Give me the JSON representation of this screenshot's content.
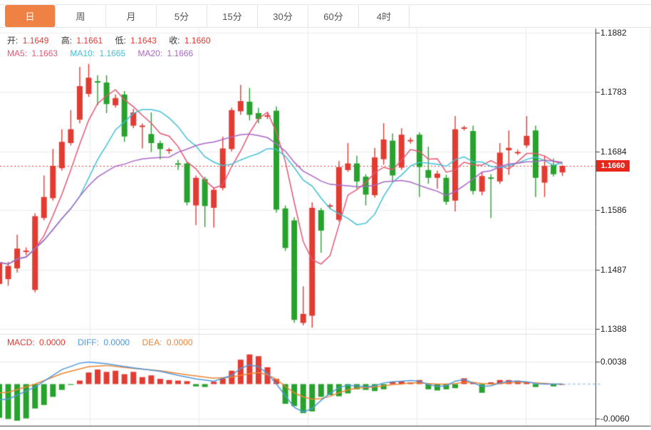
{
  "tabs": {
    "items": [
      {
        "label": "日",
        "active": true
      },
      {
        "label": "周",
        "active": false
      },
      {
        "label": "月",
        "active": false
      },
      {
        "label": "5分",
        "active": false
      },
      {
        "label": "15分",
        "active": false
      },
      {
        "label": "30分",
        "active": false
      },
      {
        "label": "60分",
        "active": false
      },
      {
        "label": "4时",
        "active": false
      }
    ]
  },
  "quote_bar": {
    "open_label": "开:",
    "open": "1.1649",
    "high_label": "高:",
    "high": "1.1661",
    "low_label": "低:",
    "low": "1.1643",
    "close_label": "收:",
    "close": "1.1660"
  },
  "ma_bar": {
    "ma5_label": "MA5:",
    "ma5": "1.1663",
    "ma10_label": "MA10:",
    "ma10": "1.1665",
    "ma20_label": "MA20:",
    "ma20": "1.1666"
  },
  "macd_bar": {
    "macd_label": "MACD:",
    "macd": "0.0000",
    "diff_label": "DIFF:",
    "diff": "0.0000",
    "dea_label": "DEA:",
    "dea": "0.0000"
  },
  "colors": {
    "up": "#e23b32",
    "down": "#27a22d",
    "ma5": "#e65775",
    "ma10": "#41c0d5",
    "ma20": "#a966c6",
    "diff": "#4e97dd",
    "dea": "#ef8532",
    "diff_dash": "#a9cfe8",
    "grid": "#ececec",
    "grid_strong": "#e0e0e0",
    "axis": "#3c3c3c",
    "accent_tab": "#ef8144",
    "badge_bg": "#e8271c",
    "last_price_line": "#e8392e"
  },
  "chart_data": {
    "type": "candlestick+macd",
    "legend_position": "top-left overlay",
    "grid": true,
    "panes": [
      {
        "name": "price",
        "ylim": [
          1.1383,
          1.1889
        ],
        "yticks": [
          {
            "label": "1.1882",
            "value": 1.1882
          },
          {
            "label": "1.1783",
            "value": 1.1783
          },
          {
            "label": "1.1684",
            "value": 1.1684
          },
          {
            "label": "1.1586",
            "value": 1.1586
          },
          {
            "label": "1.1487",
            "value": 1.1487
          },
          {
            "label": "1.1388",
            "value": 1.1388
          }
        ],
        "last_price": 1.166,
        "last_price_label": "1.1660",
        "ma_periods": [
          5,
          10,
          20
        ],
        "candles": [
          [
            1.1463,
            1.15,
            1.1458,
            1.1499
          ],
          [
            1.1471,
            1.15,
            1.146,
            1.1493
          ],
          [
            1.1489,
            1.1545,
            1.1482,
            1.1522
          ],
          [
            1.1517,
            1.1524,
            1.1511,
            1.1518
          ],
          [
            1.1453,
            1.1581,
            1.1449,
            1.1576
          ],
          [
            1.1573,
            1.1644,
            1.1569,
            1.1608
          ],
          [
            1.1606,
            1.1688,
            1.1602,
            1.166
          ],
          [
            1.1656,
            1.1721,
            1.1652,
            1.17
          ],
          [
            1.1698,
            1.1753,
            1.1694,
            1.1721
          ],
          [
            1.1737,
            1.1825,
            1.1731,
            1.1793
          ],
          [
            1.178,
            1.183,
            1.1775,
            1.1807
          ],
          [
            1.1801,
            1.1811,
            1.1761,
            1.1799
          ],
          [
            1.1799,
            1.1811,
            1.1748,
            1.1763
          ],
          [
            1.1761,
            1.1779,
            1.1757,
            1.1773
          ],
          [
            1.1779,
            1.1785,
            1.17,
            1.1709
          ],
          [
            1.1727,
            1.1755,
            1.1723,
            1.1749
          ],
          [
            1.1725,
            1.1731,
            1.1689,
            1.1727
          ],
          [
            1.1713,
            1.1749,
            1.1683,
            1.1698
          ],
          [
            1.1698,
            1.1702,
            1.1671,
            1.1688
          ],
          [
            1.1686,
            1.169,
            1.168,
            1.1686
          ],
          [
            1.1664,
            1.167,
            1.1653,
            1.1662
          ],
          [
            1.1664,
            1.1667,
            1.1594,
            1.1599
          ],
          [
            1.1594,
            1.1644,
            1.1561,
            1.164
          ],
          [
            1.1638,
            1.1642,
            1.1558,
            1.1593
          ],
          [
            1.159,
            1.1624,
            1.1557,
            1.162
          ],
          [
            1.1623,
            1.1709,
            1.1619,
            1.1689
          ],
          [
            1.1688,
            1.1757,
            1.1684,
            1.1753
          ],
          [
            1.1751,
            1.1795,
            1.1745,
            1.1768
          ],
          [
            1.1767,
            1.179,
            1.1736,
            1.1745
          ],
          [
            1.1748,
            1.1757,
            1.1731,
            1.1738
          ],
          [
            1.1743,
            1.1748,
            1.1738,
            1.1743
          ],
          [
            1.1752,
            1.1759,
            1.1582,
            1.1587
          ],
          [
            1.1589,
            1.1594,
            1.1518,
            1.1523
          ],
          [
            1.1569,
            1.1574,
            1.1398,
            1.1403
          ],
          [
            1.1398,
            1.1459,
            1.1394,
            1.1413
          ],
          [
            1.141,
            1.1599,
            1.139,
            1.159
          ],
          [
            1.1586,
            1.159,
            1.1515,
            1.1552
          ],
          [
            1.1593,
            1.1597,
            1.1588,
            1.1593
          ],
          [
            1.157,
            1.1668,
            1.1567,
            1.1658
          ],
          [
            1.1653,
            1.1698,
            1.165,
            1.1664
          ],
          [
            1.1664,
            1.1677,
            1.1622,
            1.1634
          ],
          [
            1.1642,
            1.1646,
            1.1594,
            1.1612
          ],
          [
            1.1611,
            1.169,
            1.1607,
            1.1674
          ],
          [
            1.1671,
            1.1731,
            1.1662,
            1.1704
          ],
          [
            1.1702,
            1.1714,
            1.1634,
            1.1644
          ],
          [
            1.1657,
            1.1723,
            1.1653,
            1.1712
          ],
          [
            1.1702,
            1.1707,
            1.1697,
            1.1702
          ],
          [
            1.1712,
            1.1716,
            1.1608,
            1.1658
          ],
          [
            1.1653,
            1.1692,
            1.163,
            1.164
          ],
          [
            1.164,
            1.1652,
            1.1622,
            1.1647
          ],
          [
            1.164,
            1.1645,
            1.1595,
            1.16
          ],
          [
            1.1602,
            1.1743,
            1.1584,
            1.1721
          ],
          [
            1.1723,
            1.1727,
            1.1719,
            1.1723
          ],
          [
            1.1718,
            1.1727,
            1.1612,
            1.1618
          ],
          [
            1.1617,
            1.165,
            1.1611,
            1.1643
          ],
          [
            1.164,
            1.1646,
            1.1573,
            1.1639
          ],
          [
            1.1634,
            1.1698,
            1.163,
            1.1682
          ],
          [
            1.1686,
            1.1719,
            1.1645,
            1.169
          ],
          [
            1.1682,
            1.1687,
            1.1678,
            1.1682
          ],
          [
            1.1694,
            1.1743,
            1.169,
            1.171
          ],
          [
            1.1719,
            1.1727,
            1.1608,
            1.164
          ],
          [
            1.1632,
            1.1677,
            1.1608,
            1.166
          ],
          [
            1.1662,
            1.1672,
            1.1642,
            1.1646
          ],
          [
            1.1649,
            1.1661,
            1.1643,
            1.166
          ]
        ]
      },
      {
        "name": "macd",
        "ylim": [
          -0.0075,
          0.0085
        ],
        "yticks": [
          {
            "label": "0.0038",
            "value": 0.0038
          },
          {
            "label": "-0.0060",
            "value": -0.006
          }
        ],
        "histogram": [
          -0.0058,
          -0.006,
          -0.0063,
          -0.0059,
          -0.0042,
          -0.0036,
          -0.0022,
          -0.001,
          -0.0001,
          0.0006,
          0.002,
          0.0025,
          0.0021,
          0.0023,
          0.0017,
          0.0021,
          0.0012,
          0.0015,
          0.0009,
          0.0007,
          0.0006,
          0.0005,
          -0.0004,
          -0.0005,
          0.0004,
          0.001,
          0.0023,
          0.0042,
          0.0051,
          0.0048,
          0.0029,
          0.0009,
          -0.0034,
          -0.0038,
          -0.005,
          -0.0047,
          -0.0022,
          -0.0019,
          -0.0021,
          -0.0016,
          -0.0009,
          -0.001,
          -0.0012,
          -0.0009,
          0.0004,
          0.0005,
          0.0003,
          0.0007,
          -0.0009,
          -0.0011,
          -0.0009,
          -0.0007,
          0.001,
          0.0003,
          -0.0015,
          0.0003,
          0.0007,
          0.0007,
          0.0006,
          0.0004,
          -0.0005,
          0.0002,
          -0.0004,
          0.0
        ],
        "diff_points": [
          [
            0,
            -0.0027
          ],
          [
            1,
            -0.0026
          ],
          [
            4,
            -0.0005
          ],
          [
            7,
            0.0025
          ],
          [
            9,
            0.0036
          ],
          [
            10,
            0.0038
          ],
          [
            12,
            0.0035
          ],
          [
            15,
            0.0028
          ],
          [
            18,
            0.0022
          ],
          [
            20,
            0.0015
          ],
          [
            22,
            0.0009
          ],
          [
            24,
            0.0005
          ],
          [
            26,
            0.0015
          ],
          [
            27,
            0.0027
          ],
          [
            28,
            0.0033
          ],
          [
            29,
            0.003
          ],
          [
            30,
            0.0018
          ],
          [
            31,
            0.0
          ],
          [
            32,
            -0.002
          ],
          [
            33,
            -0.004
          ],
          [
            34,
            -0.0048
          ],
          [
            35,
            -0.0042
          ],
          [
            36,
            -0.0028
          ],
          [
            37,
            -0.0016
          ],
          [
            38,
            -0.0006
          ],
          [
            39,
            -0.0002
          ],
          [
            40,
            -0.0003
          ],
          [
            41,
            -0.0005
          ],
          [
            42,
            -0.0003
          ],
          [
            43,
            0.0002
          ],
          [
            44,
            0.0004
          ],
          [
            45,
            0.0005
          ],
          [
            46,
            0.0006
          ],
          [
            47,
            0.0005
          ],
          [
            48,
            -0.0001
          ],
          [
            49,
            -0.0004
          ],
          [
            50,
            -0.0003
          ],
          [
            51,
            0.0005
          ],
          [
            52,
            0.0008
          ],
          [
            53,
            0.0002
          ],
          [
            54,
            -0.0004
          ],
          [
            55,
            -0.0003
          ],
          [
            56,
            0.0002
          ],
          [
            57,
            0.0005
          ],
          [
            58,
            0.0005
          ],
          [
            59,
            0.0004
          ],
          [
            60,
            0.0001
          ],
          [
            61,
            0.0
          ],
          [
            62,
            0.0
          ],
          [
            63,
            0.0
          ]
        ],
        "dea_points": [
          [
            0,
            -0.0015
          ],
          [
            1,
            -0.0014
          ],
          [
            4,
            0.0
          ],
          [
            7,
            0.0018
          ],
          [
            10,
            0.003
          ],
          [
            12,
            0.0032
          ],
          [
            15,
            0.0027
          ],
          [
            18,
            0.0023
          ],
          [
            21,
            0.0016
          ],
          [
            24,
            0.001
          ],
          [
            26,
            0.0012
          ],
          [
            28,
            0.0018
          ],
          [
            29,
            0.002
          ],
          [
            30,
            0.0016
          ],
          [
            31,
            0.0008
          ],
          [
            32,
            -0.0004
          ],
          [
            33,
            -0.0015
          ],
          [
            34,
            -0.0022
          ],
          [
            35,
            -0.0026
          ],
          [
            36,
            -0.0025
          ],
          [
            37,
            -0.0021
          ],
          [
            38,
            -0.0015
          ],
          [
            39,
            -0.001
          ],
          [
            40,
            -0.0007
          ],
          [
            41,
            -0.0006
          ],
          [
            42,
            -0.0005
          ],
          [
            43,
            -0.0003
          ],
          [
            44,
            -0.0001
          ],
          [
            45,
            0.0
          ],
          [
            46,
            0.0002
          ],
          [
            47,
            0.0002
          ],
          [
            48,
            0.0001
          ],
          [
            49,
            0.0
          ],
          [
            50,
            0.0
          ],
          [
            51,
            0.0001
          ],
          [
            52,
            0.0003
          ],
          [
            53,
            0.0003
          ],
          [
            54,
            0.0001
          ],
          [
            55,
            0.0
          ],
          [
            56,
            0.0001
          ],
          [
            57,
            0.0002
          ],
          [
            58,
            0.0003
          ],
          [
            59,
            0.0003
          ],
          [
            60,
            0.0002
          ],
          [
            61,
            0.0001
          ],
          [
            62,
            0.0
          ],
          [
            63,
            0.0
          ]
        ]
      }
    ]
  }
}
